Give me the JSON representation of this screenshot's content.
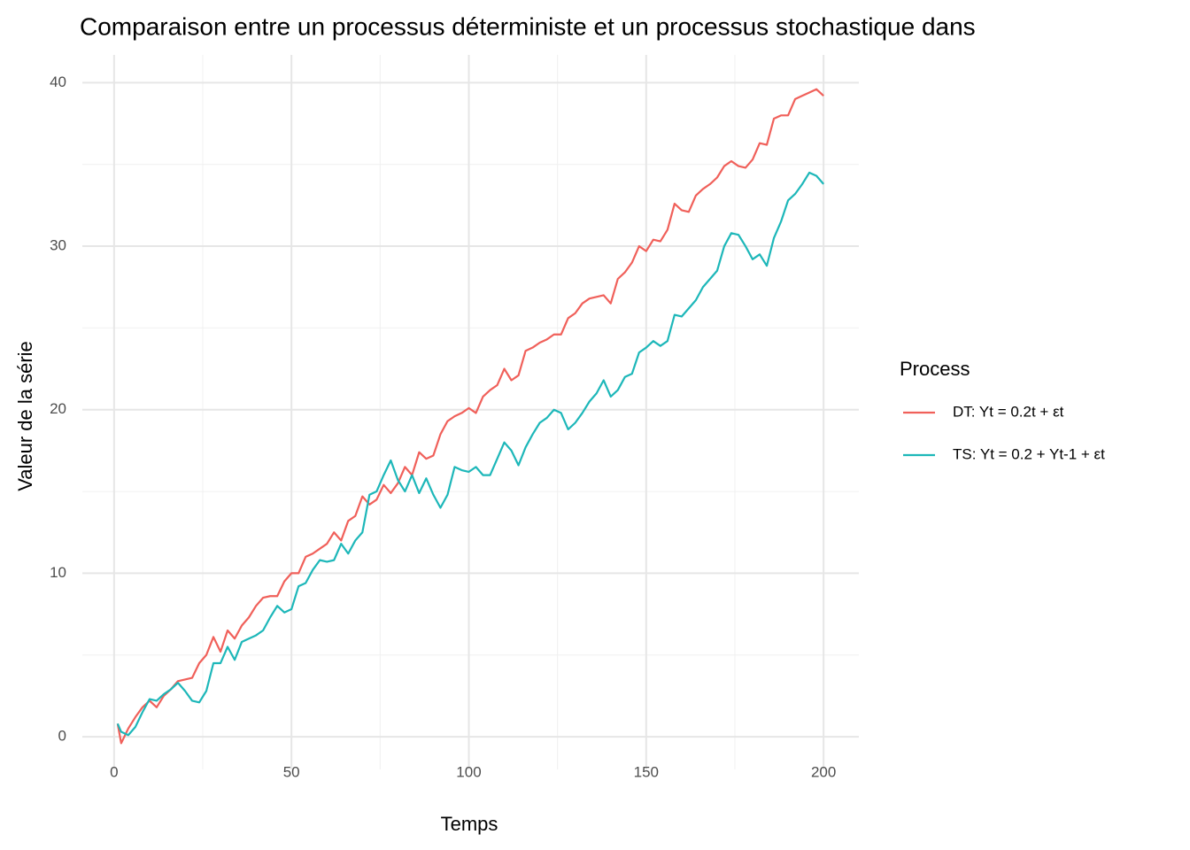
{
  "chart_data": {
    "type": "line",
    "title": "Comparaison entre un processus déterministe et un processus stochastique dans",
    "x_label": "Temps",
    "y_label": "Valeur de la série",
    "legend_title": "Process",
    "legend": "right",
    "grid": true,
    "xlim": [
      -8.95,
      209.95
    ],
    "xticks": [
      0,
      50,
      100,
      150,
      200
    ],
    "ylim": [
      -2,
      41.7
    ],
    "yticks": [
      0,
      10,
      20,
      30,
      40
    ],
    "x": [
      1,
      2,
      4,
      6,
      8,
      10,
      12,
      14,
      16,
      18,
      20,
      22,
      24,
      26,
      28,
      30,
      32,
      34,
      36,
      38,
      40,
      42,
      44,
      46,
      48,
      50,
      52,
      54,
      56,
      58,
      60,
      62,
      64,
      66,
      68,
      70,
      72,
      74,
      76,
      78,
      80,
      82,
      84,
      86,
      88,
      90,
      92,
      94,
      96,
      98,
      100,
      102,
      104,
      106,
      108,
      110,
      112,
      114,
      116,
      118,
      120,
      122,
      124,
      126,
      128,
      130,
      132,
      134,
      136,
      138,
      140,
      142,
      144,
      146,
      148,
      150,
      152,
      154,
      156,
      158,
      160,
      162,
      164,
      166,
      168,
      170,
      172,
      174,
      176,
      178,
      180,
      182,
      184,
      186,
      188,
      190,
      192,
      194,
      196,
      198,
      200
    ],
    "series": [
      {
        "name": "DT: Yt = 0.2t + εt",
        "color": "#f0605a",
        "values": [
          0.8,
          -0.4,
          0.5,
          1.2,
          1.8,
          2.2,
          1.8,
          2.5,
          2.9,
          3.4,
          3.5,
          3.6,
          4.5,
          5.0,
          6.1,
          5.2,
          6.5,
          6.0,
          6.8,
          7.3,
          8.0,
          8.5,
          8.6,
          8.6,
          9.5,
          10.0,
          10.0,
          11.0,
          11.2,
          11.5,
          11.8,
          12.5,
          12.0,
          13.2,
          13.5,
          14.7,
          14.2,
          14.5,
          15.4,
          14.9,
          15.5,
          16.5,
          16.0,
          17.4,
          17.0,
          17.2,
          18.5,
          19.3,
          19.6,
          19.8,
          20.1,
          19.8,
          20.8,
          21.2,
          21.5,
          22.5,
          21.8,
          22.1,
          23.6,
          23.8,
          24.1,
          24.3,
          24.6,
          24.6,
          25.6,
          25.9,
          26.5,
          26.8,
          26.9,
          27.0,
          26.5,
          28.0,
          28.4,
          29.0,
          30.0,
          29.7,
          30.4,
          30.3,
          31.0,
          32.6,
          32.2,
          32.1,
          33.1,
          33.5,
          33.8,
          34.2,
          34.9,
          35.2,
          34.9,
          34.8,
          35.3,
          36.3,
          36.2,
          37.8,
          38.0,
          38.0,
          39.0,
          39.2,
          39.4,
          39.6,
          39.2
        ]
      },
      {
        "name": "TS: Yt = 0.2 + Yt-1 + εt",
        "color": "#1db7b9",
        "values": [
          0.8,
          0.3,
          0.1,
          0.6,
          1.5,
          2.3,
          2.2,
          2.6,
          2.9,
          3.3,
          2.8,
          2.2,
          2.1,
          2.8,
          4.5,
          4.5,
          5.5,
          4.7,
          5.8,
          6.0,
          6.2,
          6.5,
          7.3,
          8.0,
          7.6,
          7.8,
          9.2,
          9.4,
          10.2,
          10.8,
          10.7,
          10.8,
          11.8,
          11.2,
          12.0,
          12.5,
          14.8,
          15.0,
          16.0,
          16.9,
          15.7,
          15.0,
          16.0,
          14.9,
          15.8,
          14.8,
          14.0,
          14.8,
          16.5,
          16.3,
          16.2,
          16.5,
          16.0,
          16.0,
          17.0,
          18.0,
          17.5,
          16.6,
          17.7,
          18.5,
          19.2,
          19.5,
          20.0,
          19.8,
          18.8,
          19.2,
          19.8,
          20.5,
          21.0,
          21.8,
          20.8,
          21.2,
          22.0,
          22.2,
          23.5,
          23.8,
          24.2,
          23.9,
          24.2,
          25.8,
          25.7,
          26.2,
          26.7,
          27.5,
          28.0,
          28.5,
          30.0,
          30.8,
          30.7,
          30.0,
          29.2,
          29.5,
          28.8,
          30.5,
          31.5,
          32.8,
          33.2,
          33.8,
          34.5,
          34.3,
          33.8
        ]
      }
    ]
  }
}
